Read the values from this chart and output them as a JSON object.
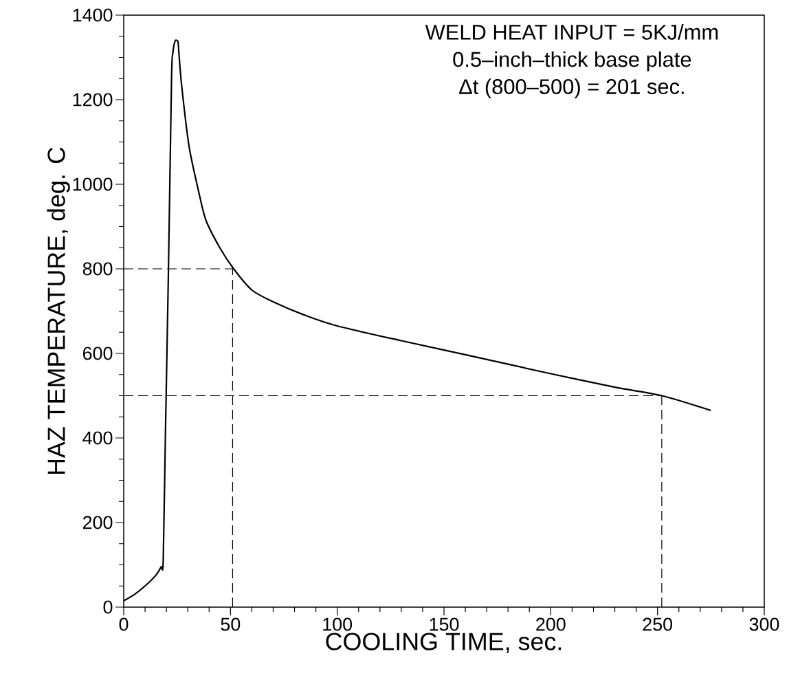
{
  "chart_data": {
    "type": "line",
    "xlabel": "COOLING TIME,  sec.",
    "ylabel": "HAZ TEMPERATURE,  deg.  C",
    "annotations": [
      "WELD HEAT INPUT  =  5KJ/mm",
      "0.5–inch–thick  base  plate",
      "Δt  (800–500)  =  201  sec."
    ],
    "xlim": [
      0,
      300
    ],
    "ylim": [
      0,
      1400
    ],
    "xticks": [
      0,
      50,
      100,
      150,
      200,
      250,
      300
    ],
    "yticks": [
      0,
      200,
      400,
      600,
      800,
      1000,
      1200,
      1400
    ],
    "grid": false,
    "marker": "none",
    "line_style": "solid",
    "series": [
      {
        "color": "#000000",
        "x": [
          0,
          5,
          10,
          15,
          17.5,
          18.5,
          19.5,
          20.9,
          22.4,
          23,
          24,
          25,
          25.5,
          26,
          27,
          29,
          31,
          35,
          38.5,
          45,
          51.5,
          60,
          70,
          85,
          100,
          130,
          160,
          200,
          230,
          252,
          275
        ],
        "values": [
          15,
          30,
          50,
          75,
          95,
          110,
          400,
          782,
          1250,
          1310,
          1338,
          1340,
          1335,
          1300,
          1240,
          1150,
          1078,
          985,
          915,
          850,
          800,
          750,
          722,
          690,
          665,
          630,
          597,
          552,
          520,
          500,
          465
        ]
      }
    ],
    "ref_lines": [
      {
        "axis": "y",
        "value": 800,
        "line_style": "dashed"
      },
      {
        "axis": "x",
        "value": 51,
        "line_style": "dashed"
      },
      {
        "axis": "y",
        "value": 500,
        "line_style": "dashed"
      },
      {
        "axis": "x",
        "value": 252,
        "line_style": "dashed"
      }
    ]
  }
}
